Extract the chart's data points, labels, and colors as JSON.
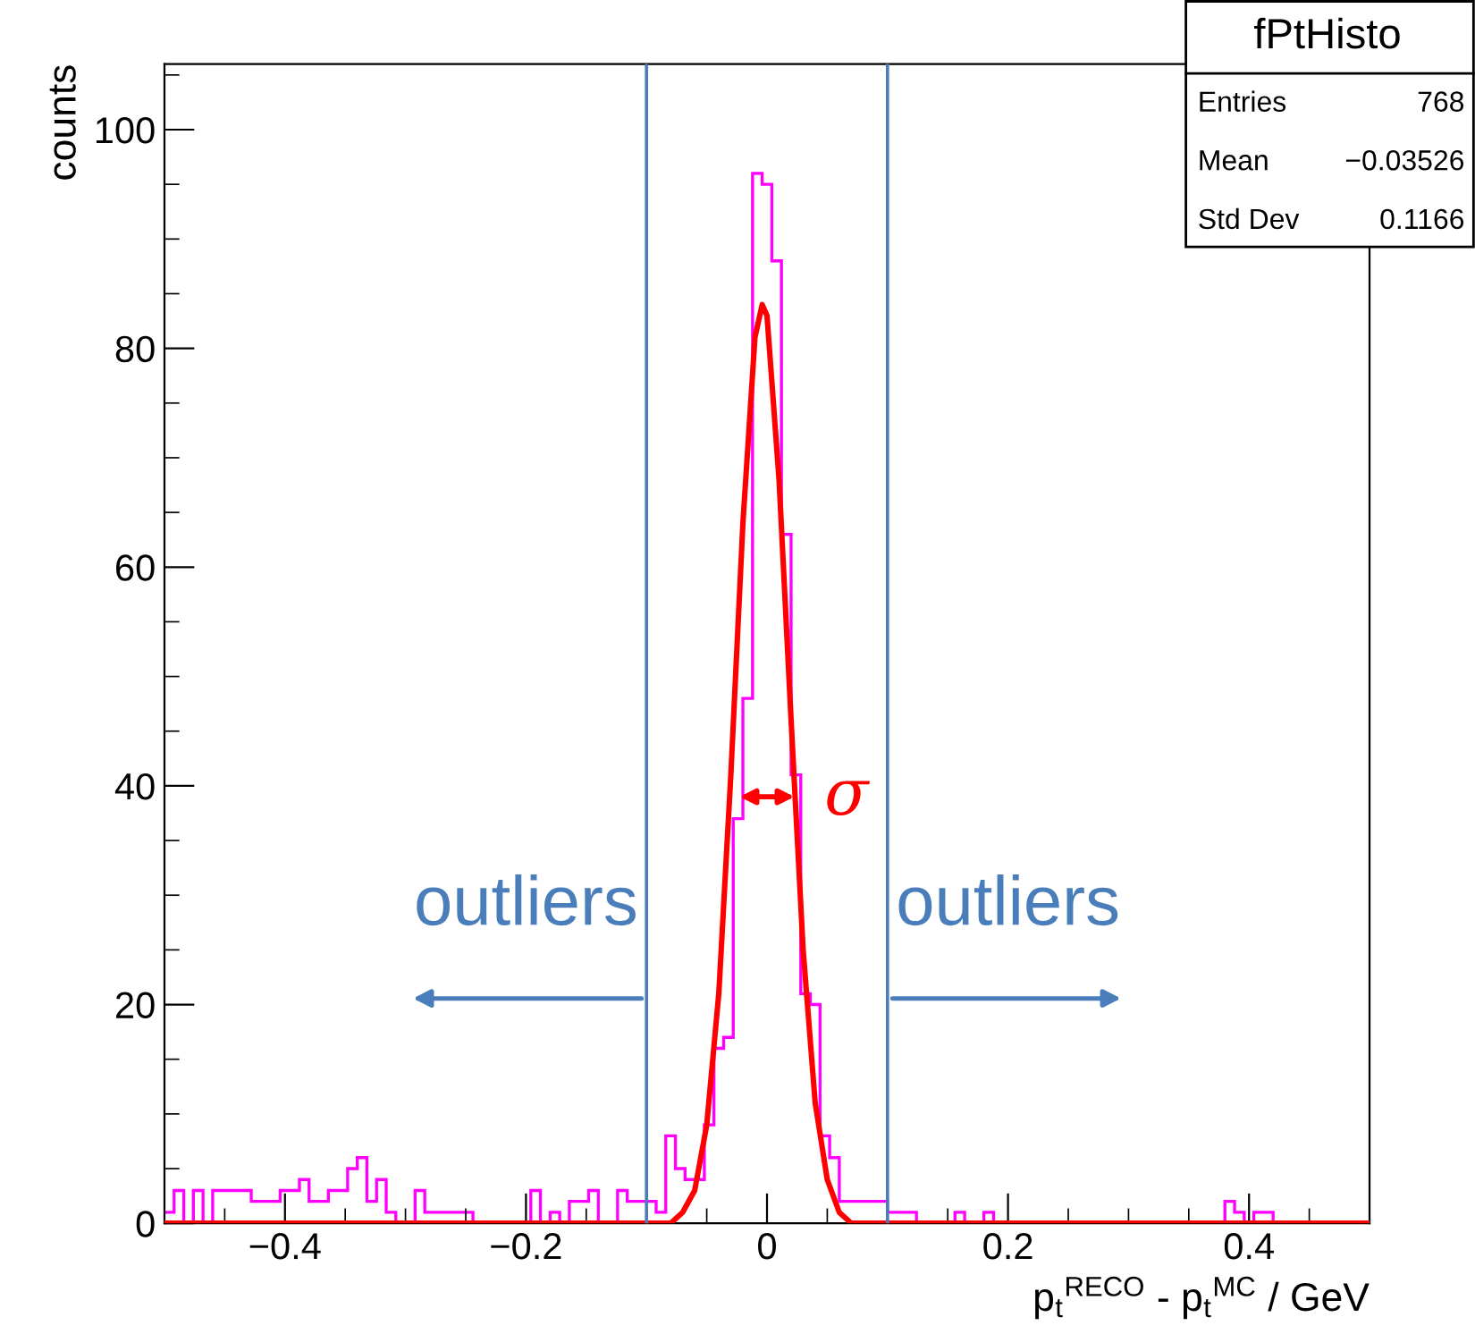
{
  "chart_data": {
    "type": "histogram",
    "xlabel": "p$_{t}$$^{RECO}$ - p$_{t}$$^{MC}$ / GeV",
    "ylabel": "counts",
    "xlim": [
      -0.5,
      0.5
    ],
    "ylim": [
      0,
      106
    ],
    "xticks": [
      {
        "value": -0.4,
        "label": "−0.4"
      },
      {
        "value": -0.2,
        "label": "−0.2"
      },
      0,
      0.2,
      0.4
    ],
    "yticks": [
      0,
      20,
      40,
      60,
      80,
      100
    ],
    "grid": false,
    "legend": false,
    "bins": [
      -0.5,
      -0.492,
      -0.484,
      -0.476,
      -0.468,
      -0.46,
      -0.452,
      -0.444,
      -0.436,
      -0.428,
      -0.42,
      -0.412,
      -0.404,
      -0.396,
      -0.388,
      -0.38,
      -0.372,
      -0.364,
      -0.356,
      -0.348,
      -0.34,
      -0.332,
      -0.324,
      -0.316,
      -0.308,
      -0.3,
      -0.292,
      -0.284,
      -0.276,
      -0.268,
      -0.26,
      -0.252,
      -0.244,
      -0.236,
      -0.228,
      -0.22,
      -0.212,
      -0.204,
      -0.196,
      -0.188,
      -0.18,
      -0.172,
      -0.164,
      -0.156,
      -0.148,
      -0.14,
      -0.132,
      -0.124,
      -0.116,
      -0.108,
      -0.1,
      -0.092,
      -0.084,
      -0.076,
      -0.068,
      -0.06,
      -0.052,
      -0.044,
      -0.036,
      -0.028,
      -0.02,
      -0.012,
      -0.004,
      0.004,
      0.012,
      0.02,
      0.028,
      0.036,
      0.044,
      0.052,
      0.06,
      0.068,
      0.076,
      0.084,
      0.092,
      0.1,
      0.108,
      0.116,
      0.124,
      0.132,
      0.14,
      0.148,
      0.156,
      0.164,
      0.172,
      0.18,
      0.188,
      0.196,
      0.204,
      0.212,
      0.22,
      0.228,
      0.236,
      0.244,
      0.252,
      0.26,
      0.268,
      0.276,
      0.284,
      0.292,
      0.3,
      0.308,
      0.316,
      0.324,
      0.332,
      0.34,
      0.348,
      0.356,
      0.364,
      0.372,
      0.38,
      0.388,
      0.396,
      0.404,
      0.412,
      0.42,
      0.428,
      0.436,
      0.444,
      0.452,
      0.46,
      0.468,
      0.476,
      0.484,
      0.492,
      0.5
    ],
    "series": [
      {
        "color": "#ff00ff",
        "values": [
          1,
          3,
          0,
          3,
          0,
          3,
          3,
          3,
          3,
          2,
          2,
          2,
          3,
          3,
          4,
          2,
          2,
          3,
          3,
          5,
          6,
          2,
          4,
          1,
          0,
          0,
          3,
          1,
          1,
          1,
          1,
          1,
          0,
          0,
          0,
          0,
          0,
          0,
          3,
          0,
          1,
          0,
          2,
          2,
          3,
          0,
          0,
          3,
          2,
          2,
          2,
          1,
          8,
          5,
          4,
          4,
          9,
          16,
          17,
          37,
          48,
          96,
          95,
          88,
          63,
          41,
          21,
          20,
          8,
          6,
          2,
          2,
          2,
          2,
          2,
          1,
          1,
          1,
          0,
          0,
          0,
          0,
          1,
          0,
          0,
          1,
          0,
          0,
          0,
          0,
          0,
          0,
          0,
          0,
          0,
          0,
          0,
          0,
          0,
          0,
          0,
          0,
          0,
          0,
          0,
          0,
          0,
          0,
          0,
          0,
          2,
          1,
          0,
          1,
          1,
          0,
          0,
          0,
          0,
          0,
          0,
          0,
          0,
          0,
          0
        ]
      },
      {
        "type": "line",
        "color": "#ff0000",
        "x": [
          -0.5,
          -0.08,
          -0.07,
          -0.06,
          -0.05,
          -0.04,
          -0.03,
          -0.02,
          -0.01,
          -0.004,
          0.0,
          0.01,
          0.02,
          0.03,
          0.04,
          0.05,
          0.06,
          0.07,
          0.08,
          0.5
        ],
        "values": [
          0,
          0,
          1,
          3,
          9,
          21,
          41,
          64,
          81,
          84,
          83,
          68,
          46,
          25,
          11,
          4,
          1,
          0,
          0,
          0
        ]
      }
    ],
    "ref_lines": [
      {
        "axis": "x",
        "value": -0.1,
        "color": "#4a7ebb"
      },
      {
        "axis": "x",
        "value": 0.1,
        "color": "#4a7ebb"
      }
    ],
    "annotations": [
      "fPtHisto",
      "Entries 768",
      "Mean −0.03526",
      "Std Dev 0.1166",
      "outliers",
      "outliers",
      {
        "text": "σ",
        "x": 0.027,
        "y": 39
      }
    ]
  }
}
